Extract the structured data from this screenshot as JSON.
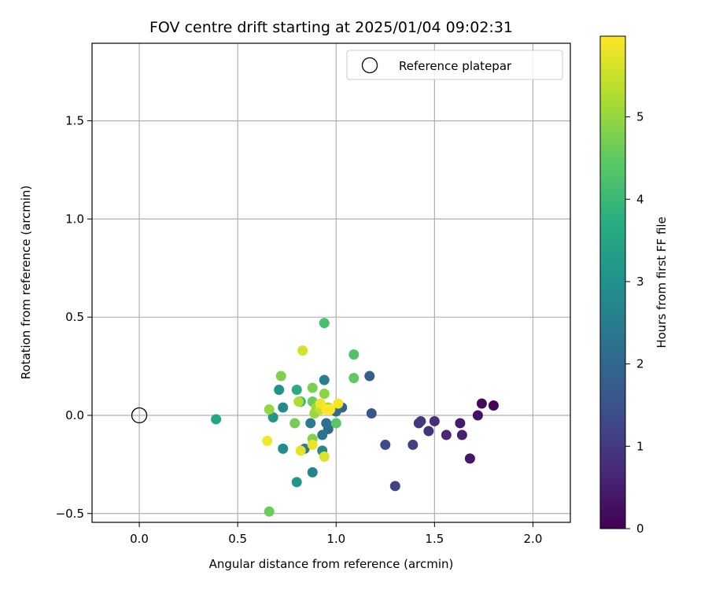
{
  "chart_data": {
    "type": "scatter",
    "title": "FOV centre drift starting at 2025/01/04 09:02:31",
    "xlabel": "Angular distance from reference (arcmin)",
    "ylabel": "Rotation from reference (arcmin)",
    "xlim": [
      -0.24,
      2.19
    ],
    "ylim": [
      -0.545,
      1.895
    ],
    "xticks": [
      0.0,
      0.5,
      1.0,
      1.5,
      2.0
    ],
    "xtick_labels": [
      "0.0",
      "0.5",
      "1.0",
      "1.5",
      "2.0"
    ],
    "yticks": [
      -0.5,
      0.0,
      0.5,
      1.0,
      1.5
    ],
    "ytick_labels": [
      "−0.5",
      "0.0",
      "0.5",
      "1.0",
      "1.5"
    ],
    "grid": true,
    "legend": {
      "placement": "top-right",
      "entries": [
        "Reference platepar"
      ]
    },
    "reference_point": {
      "x": 0.0,
      "y": 0.0
    },
    "colorbar": {
      "label": "Hours from first FF file",
      "range": [
        0,
        5.98
      ],
      "ticks": [
        0,
        1,
        2,
        3,
        4,
        5
      ],
      "tick_labels": [
        "0",
        "1",
        "2",
        "3",
        "4",
        "5"
      ],
      "colormap": "viridis"
    },
    "points": [
      {
        "x": 1.8,
        "y": 0.05,
        "h": 0.05
      },
      {
        "x": 1.74,
        "y": 0.06,
        "h": 0.15
      },
      {
        "x": 1.72,
        "y": 0.0,
        "h": 0.25
      },
      {
        "x": 1.68,
        "y": -0.22,
        "h": 0.35
      },
      {
        "x": 1.63,
        "y": -0.04,
        "h": 0.45
      },
      {
        "x": 1.64,
        "y": -0.1,
        "h": 0.55
      },
      {
        "x": 1.56,
        "y": -0.1,
        "h": 0.65
      },
      {
        "x": 1.5,
        "y": -0.03,
        "h": 0.75
      },
      {
        "x": 1.47,
        "y": -0.08,
        "h": 0.85
      },
      {
        "x": 1.42,
        "y": -0.04,
        "h": 0.95
      },
      {
        "x": 1.43,
        "y": -0.03,
        "h": 1.0
      },
      {
        "x": 1.39,
        "y": -0.15,
        "h": 1.1
      },
      {
        "x": 1.3,
        "y": -0.36,
        "h": 1.2
      },
      {
        "x": 1.25,
        "y": -0.15,
        "h": 1.35
      },
      {
        "x": 1.18,
        "y": 0.01,
        "h": 1.6
      },
      {
        "x": 1.17,
        "y": 0.2,
        "h": 1.75
      },
      {
        "x": 1.03,
        "y": 0.04,
        "h": 1.9
      },
      {
        "x": 1.0,
        "y": 0.02,
        "h": 2.0
      },
      {
        "x": 0.96,
        "y": -0.07,
        "h": 2.1
      },
      {
        "x": 0.95,
        "y": -0.04,
        "h": 2.2
      },
      {
        "x": 0.93,
        "y": -0.1,
        "h": 2.3
      },
      {
        "x": 0.84,
        "y": -0.17,
        "h": 2.4
      },
      {
        "x": 0.87,
        "y": -0.04,
        "h": 2.45
      },
      {
        "x": 0.94,
        "y": 0.18,
        "h": 2.55
      },
      {
        "x": 0.88,
        "y": -0.29,
        "h": 2.7
      },
      {
        "x": 0.93,
        "y": -0.18,
        "h": 2.8
      },
      {
        "x": 0.73,
        "y": 0.04,
        "h": 2.85
      },
      {
        "x": 0.73,
        "y": -0.17,
        "h": 2.9
      },
      {
        "x": 0.71,
        "y": 0.13,
        "h": 3.0
      },
      {
        "x": 0.68,
        "y": -0.01,
        "h": 3.1
      },
      {
        "x": 0.8,
        "y": -0.34,
        "h": 3.15
      },
      {
        "x": 0.39,
        "y": -0.02,
        "h": 3.5
      },
      {
        "x": 0.8,
        "y": 0.13,
        "h": 3.65
      },
      {
        "x": 0.82,
        "y": 0.07,
        "h": 3.8
      },
      {
        "x": 0.94,
        "y": 0.47,
        "h": 4.2
      },
      {
        "x": 1.09,
        "y": 0.31,
        "h": 4.3
      },
      {
        "x": 1.0,
        "y": -0.04,
        "h": 4.4
      },
      {
        "x": 1.09,
        "y": 0.19,
        "h": 4.5
      },
      {
        "x": 0.88,
        "y": 0.07,
        "h": 4.6
      },
      {
        "x": 0.66,
        "y": -0.49,
        "h": 4.6
      },
      {
        "x": 0.79,
        "y": -0.04,
        "h": 4.7
      },
      {
        "x": 0.88,
        "y": 0.14,
        "h": 4.75
      },
      {
        "x": 0.72,
        "y": 0.2,
        "h": 4.8
      },
      {
        "x": 0.88,
        "y": -0.12,
        "h": 4.85
      },
      {
        "x": 0.94,
        "y": 0.11,
        "h": 4.9
      },
      {
        "x": 0.66,
        "y": 0.03,
        "h": 5.0
      },
      {
        "x": 0.89,
        "y": 0.01,
        "h": 5.05
      },
      {
        "x": 0.9,
        "y": 0.04,
        "h": 5.1
      },
      {
        "x": 0.96,
        "y": 0.04,
        "h": 5.15
      },
      {
        "x": 0.81,
        "y": 0.07,
        "h": 5.25
      },
      {
        "x": 0.92,
        "y": 0.03,
        "h": 5.4
      },
      {
        "x": 0.83,
        "y": 0.33,
        "h": 5.6
      },
      {
        "x": 0.94,
        "y": -0.21,
        "h": 5.65
      },
      {
        "x": 0.82,
        "y": -0.18,
        "h": 5.75
      },
      {
        "x": 0.88,
        "y": -0.15,
        "h": 5.8
      },
      {
        "x": 0.92,
        "y": 0.06,
        "h": 5.85
      },
      {
        "x": 0.65,
        "y": -0.13,
        "h": 5.9
      },
      {
        "x": 1.01,
        "y": 0.06,
        "h": 5.9
      },
      {
        "x": 0.95,
        "y": 0.03,
        "h": 5.95
      },
      {
        "x": 0.97,
        "y": 0.03,
        "h": 5.98
      }
    ]
  }
}
